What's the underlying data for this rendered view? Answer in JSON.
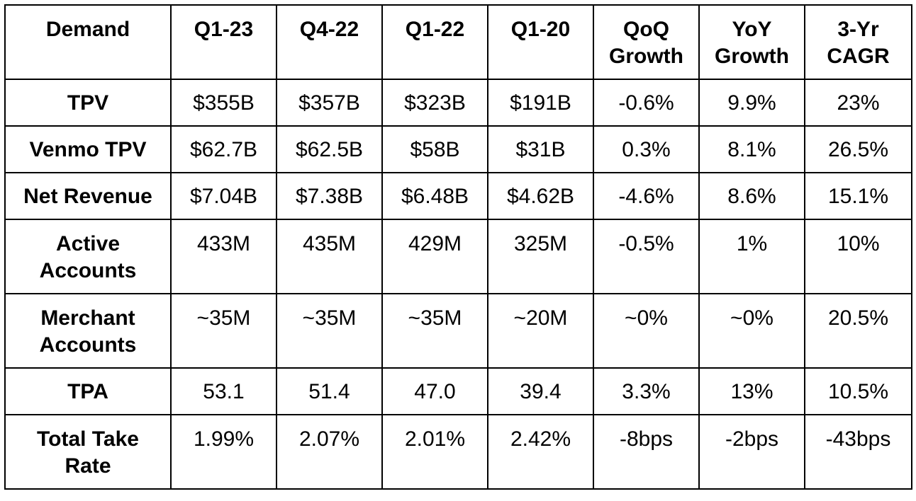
{
  "chart_data": {
    "type": "table",
    "columns": [
      "Demand",
      "Q1-23",
      "Q4-22",
      "Q1-22",
      "Q1-20",
      "QoQ\nGrowth",
      "YoY\nGrowth",
      "3-Yr\nCAGR"
    ],
    "rows": [
      {
        "label": "TPV",
        "values": [
          "$355B",
          "$357B",
          "$323B",
          "$191B",
          "-0.6%",
          "9.9%",
          "23%"
        ]
      },
      {
        "label": "Venmo TPV",
        "values": [
          "$62.7B",
          "$62.5B",
          "$58B",
          "$31B",
          "0.3%",
          "8.1%",
          "26.5%"
        ]
      },
      {
        "label": "Net Revenue",
        "values": [
          "$7.04B",
          "$7.38B",
          "$6.48B",
          "$4.62B",
          "-4.6%",
          "8.6%",
          "15.1%"
        ]
      },
      {
        "label": "Active\nAccounts",
        "values": [
          "433M",
          "435M",
          "429M",
          "325M",
          "-0.5%",
          "1%",
          "10%"
        ]
      },
      {
        "label": "Merchant\nAccounts",
        "values": [
          "~35M",
          "~35M",
          "~35M",
          "~20M",
          "~0%",
          "~0%",
          "20.5%"
        ]
      },
      {
        "label": "TPA",
        "values": [
          "53.1",
          "51.4",
          "47.0",
          "39.4",
          "3.3%",
          "13%",
          "10.5%"
        ]
      },
      {
        "label": "Total Take\nRate",
        "values": [
          "1.99%",
          "2.07%",
          "2.01%",
          "2.42%",
          "-8bps",
          "-2bps",
          "-43bps"
        ]
      }
    ]
  }
}
